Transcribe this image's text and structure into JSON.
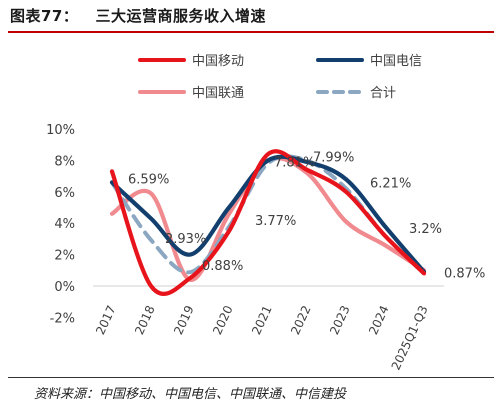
{
  "header": {
    "title": "图表77：   三大运营商服务收入增速"
  },
  "footer": {
    "source": "资料来源：中国移动、中国电信、中国联通、中信建投"
  },
  "chart_data": {
    "type": "line",
    "categories": [
      "2017",
      "2018",
      "2019",
      "2020",
      "2021",
      "2022",
      "2023",
      "2024",
      "2025Q1-Q3"
    ],
    "y_ticks": [
      "-2%",
      "0%",
      "2%",
      "4%",
      "6%",
      "8%",
      "10%"
    ],
    "ylim": [
      -2,
      10
    ],
    "legend_position": "top",
    "grid": false,
    "series": [
      {
        "name": "中国移动",
        "color": "#e8141b",
        "dash": "solid",
        "values": [
          7.3,
          0.0,
          0.5,
          3.5,
          8.4,
          7.4,
          6.0,
          3.2,
          0.8
        ]
      },
      {
        "name": "中国电信",
        "color": "#123f6e",
        "dash": "solid",
        "values": [
          6.6,
          4.3,
          2.0,
          5.0,
          8.0,
          7.9,
          6.8,
          3.8,
          0.9
        ]
      },
      {
        "name": "中国联通",
        "color": "#f08a8f",
        "dash": "solid",
        "values": [
          4.6,
          5.9,
          0.4,
          4.6,
          8.0,
          7.2,
          4.1,
          2.6,
          1.0
        ]
      },
      {
        "name": "合计",
        "color": "#8ba7c1",
        "dash": "dashed",
        "values": [
          6.59,
          2.93,
          0.88,
          3.77,
          7.81,
          7.99,
          6.21,
          3.2,
          0.87
        ]
      }
    ],
    "data_labels": [
      {
        "category": "2017",
        "value": 6.59,
        "text": "6.59%"
      },
      {
        "category": "2018",
        "value": 2.93,
        "text": "2.93%"
      },
      {
        "category": "2019",
        "value": 0.88,
        "text": "0.88%"
      },
      {
        "category": "2020",
        "value": 3.77,
        "text": "3.77%"
      },
      {
        "category": "2021",
        "value": 7.81,
        "text": "7.81%"
      },
      {
        "category": "2022",
        "value": 7.99,
        "text": "7.99%"
      },
      {
        "category": "2023",
        "value": 6.21,
        "text": "6.21%"
      },
      {
        "category": "2024",
        "value": 3.2,
        "text": "3.2%"
      },
      {
        "category": "2025Q1-Q3",
        "value": 0.87,
        "text": "0.87%"
      }
    ]
  }
}
